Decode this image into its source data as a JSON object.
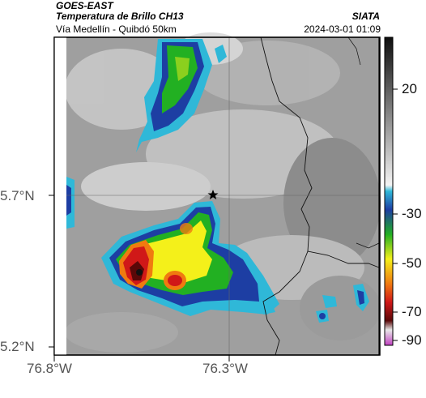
{
  "header": {
    "line1": "GOES-EAST",
    "line2": "Temperatura de Brillo CH13",
    "line3": "Vía Medellín - Quibdó 50km",
    "org": "SIATA",
    "datetime": "2024-03-01 01:09"
  },
  "axes": {
    "lat_labels": [
      "5.7°N",
      "5.2°N"
    ],
    "lon_labels": [
      "76.8°W",
      "76.3°W"
    ]
  },
  "colorbar": {
    "labels": [
      "20",
      "-30",
      "-50",
      "-70",
      "-90"
    ],
    "colors": {
      "dark": "#111111",
      "light": "#f2f2f2",
      "cyan": "#2fb8d8",
      "blue": "#1d3ea3",
      "green": "#22b022",
      "yellow": "#f4f01a",
      "orange": "#f07a10",
      "red": "#d01818",
      "maroon": "#5a0808",
      "magenta": "#c040c0"
    }
  },
  "map": {
    "marker_icon": "star-icon"
  }
}
